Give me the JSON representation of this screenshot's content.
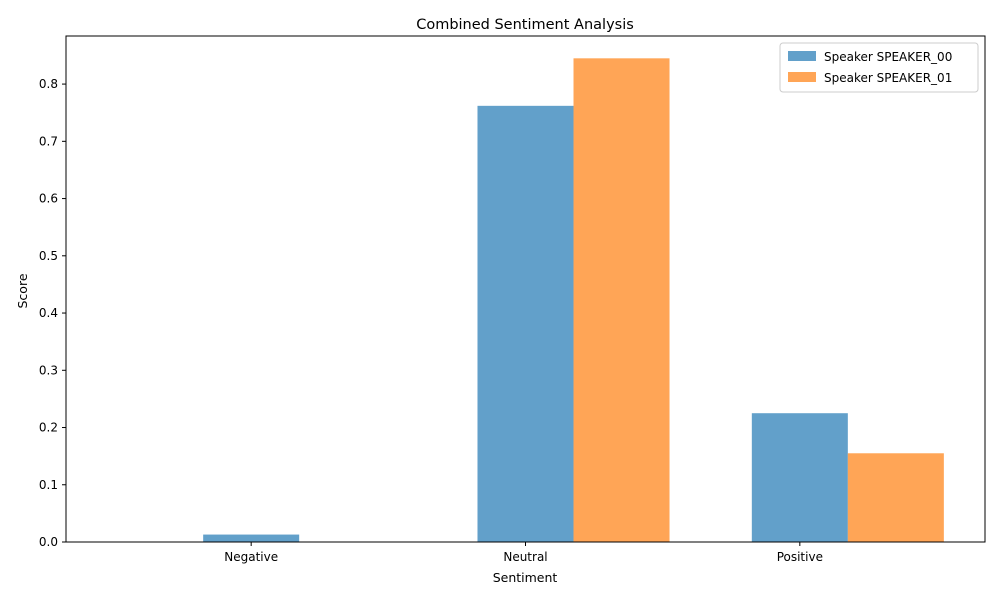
{
  "chart_data": {
    "type": "bar",
    "title": "Combined Sentiment Analysis",
    "xlabel": "Sentiment",
    "ylabel": "Score",
    "categories": [
      "Negative",
      "Neutral",
      "Positive"
    ],
    "ylim": [
      0,
      0.884
    ],
    "yticks": [
      0.0,
      0.1,
      0.2,
      0.3,
      0.4,
      0.5,
      0.6,
      0.7,
      0.8
    ],
    "grid": false,
    "legend_position": "top-right",
    "series": [
      {
        "name": "Speaker SPEAKER_00",
        "color": "#1f77b4",
        "values": [
          0.013,
          0.762,
          0.225
        ]
      },
      {
        "name": "Speaker SPEAKER_01",
        "color": "#ff7f0e",
        "values": [
          0.0,
          0.845,
          0.155
        ]
      }
    ]
  }
}
